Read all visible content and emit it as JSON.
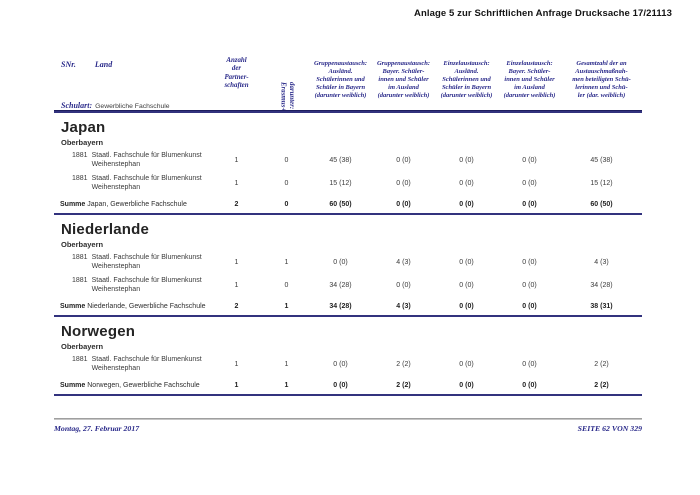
{
  "page": {
    "header_right": "Anlage 5 zur Schriftlichen Anfrage Drucksache 17/21113",
    "footer": {
      "date": "Montag, 27. Februar 2017",
      "page_info": "SEITE 62 VON 329"
    },
    "colors": {
      "navy_text": "#2a2a8a",
      "navy_rule": "#32327e",
      "footer_rule_gray": "#8c8c8c"
    }
  },
  "table_header": {
    "snr": "SNr.",
    "land": "Land",
    "schulart_label": "Schulart:",
    "schulart_value": "Gewerbliche Fachschule",
    "partnerships": "Anzahl\nder\nPartner-\nschaften",
    "erasmus": "darunter:\nErasmus+",
    "columns": [
      "Gruppenaustausch:\nAusländ.\nSchülerinnen und\nSchüler in Bayern\n(darunter weiblich)",
      "Gruppenaustausch:\nBayer. Schüler-\ninnen und Schüler\nim Ausland\n(darunter weiblich)",
      "Einzelaustausch:\nAusländ.\nSchülerinnen und\nSchüler in Bayern\n(darunter weiblich)",
      "Einzelaustausch:\nBayer. Schüler-\ninnen und Schüler\nim Ausland\n(darunter weiblich)",
      "Gesamtzahl der an\nAustauschmaßnah-\nmen beteiligten Schü-\nlerinnen und Schü-\nler (dar. weiblich)"
    ]
  },
  "sections": [
    {
      "country": "Japan",
      "region": "Oberbayern",
      "rows": [
        {
          "snr": "1881",
          "school": "Staatl. Fachschule für Blumenkunst\nWeihenstephan",
          "partnerships": "1",
          "erasmus": "0",
          "values": [
            "45 (38)",
            "0 (0)",
            "0 (0)",
            "0 (0)",
            "45 (38)"
          ]
        },
        {
          "snr": "1881",
          "school": "Staatl. Fachschule für Blumenkunst\nWeihenstephan",
          "partnerships": "1",
          "erasmus": "0",
          "values": [
            "15 (12)",
            "0 (0)",
            "0 (0)",
            "0 (0)",
            "15 (12)"
          ]
        }
      ],
      "sum": {
        "label": "Summe",
        "rest": "Japan, Gewerbliche Fachschule",
        "partnerships": "2",
        "erasmus": "0",
        "values": [
          "60 (50)",
          "0 (0)",
          "0 (0)",
          "0 (0)",
          "60 (50)"
        ]
      }
    },
    {
      "country": "Niederlande",
      "region": "Oberbayern",
      "rows": [
        {
          "snr": "1881",
          "school": "Staatl. Fachschule für Blumenkunst\nWeihenstephan",
          "partnerships": "1",
          "erasmus": "1",
          "values": [
            "0 (0)",
            "4 (3)",
            "0 (0)",
            "0 (0)",
            "4 (3)"
          ]
        },
        {
          "snr": "1881",
          "school": "Staatl. Fachschule für Blumenkunst\nWeihenstephan",
          "partnerships": "1",
          "erasmus": "0",
          "values": [
            "34 (28)",
            "0 (0)",
            "0 (0)",
            "0 (0)",
            "34 (28)"
          ]
        }
      ],
      "sum": {
        "label": "Summe",
        "rest": "Niederlande, Gewerbliche Fachschule",
        "partnerships": "2",
        "erasmus": "1",
        "values": [
          "34 (28)",
          "4 (3)",
          "0 (0)",
          "0 (0)",
          "38 (31)"
        ]
      }
    },
    {
      "country": "Norwegen",
      "region": "Oberbayern",
      "rows": [
        {
          "snr": "1881",
          "school": "Staatl. Fachschule für Blumenkunst\nWeihenstephan",
          "partnerships": "1",
          "erasmus": "1",
          "values": [
            "0 (0)",
            "2 (2)",
            "0 (0)",
            "0 (0)",
            "2 (2)"
          ]
        }
      ],
      "sum": {
        "label": "Summe",
        "rest": "Norwegen, Gewerbliche Fachschule",
        "partnerships": "1",
        "erasmus": "1",
        "values": [
          "0 (0)",
          "2 (2)",
          "0 (0)",
          "0 (0)",
          "2 (2)"
        ]
      }
    }
  ]
}
